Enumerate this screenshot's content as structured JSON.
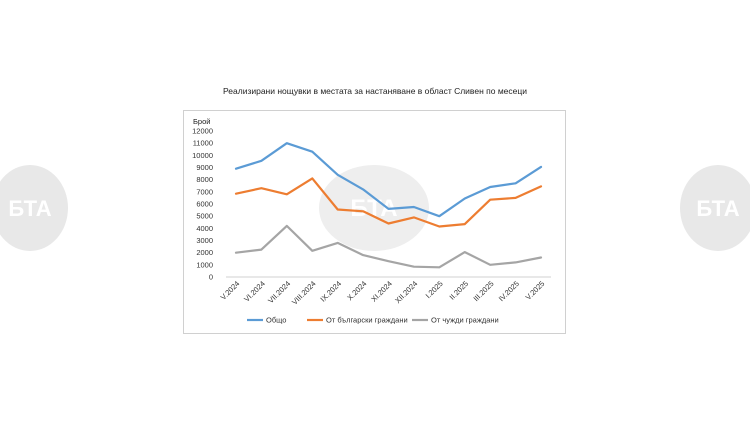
{
  "chart_data": {
    "type": "line",
    "title": "Реализирани нощувки в местата за настаняване в област Сливен по месеци",
    "ylabel": "Брой",
    "xlabel": "",
    "ylim": [
      0,
      12000
    ],
    "yticks": [
      0,
      1000,
      2000,
      3000,
      4000,
      5000,
      6000,
      7000,
      8000,
      9000,
      10000,
      11000,
      12000
    ],
    "categories": [
      "V.2024",
      "VI.2024",
      "VII.2024",
      "VIII.2024",
      "IX.2024",
      "X.2024",
      "XI.2024",
      "XII.2024",
      "I.2025",
      "II.2025",
      "III.2025",
      "IV.2025",
      "V.2025"
    ],
    "grid": false,
    "legend_position": "bottom",
    "series": [
      {
        "name": "Общо",
        "color": "#5b9bd5",
        "values": [
          8900,
          9550,
          11000,
          10300,
          8400,
          7200,
          5600,
          5750,
          5000,
          6450,
          7400,
          7700,
          9050
        ]
      },
      {
        "name": "От български граждани",
        "color": "#ed7d31",
        "values": [
          6850,
          7300,
          6800,
          8100,
          5550,
          5400,
          4400,
          4900,
          4150,
          4350,
          6350,
          6500,
          7450
        ]
      },
      {
        "name": "От чужди граждани",
        "color": "#a5a5a5",
        "values": [
          2000,
          2250,
          4200,
          2150,
          2800,
          1800,
          1300,
          850,
          800,
          2050,
          1000,
          1200,
          1600
        ]
      }
    ]
  },
  "watermark": {
    "text": "БТА",
    "color": "#e6e6e6"
  }
}
